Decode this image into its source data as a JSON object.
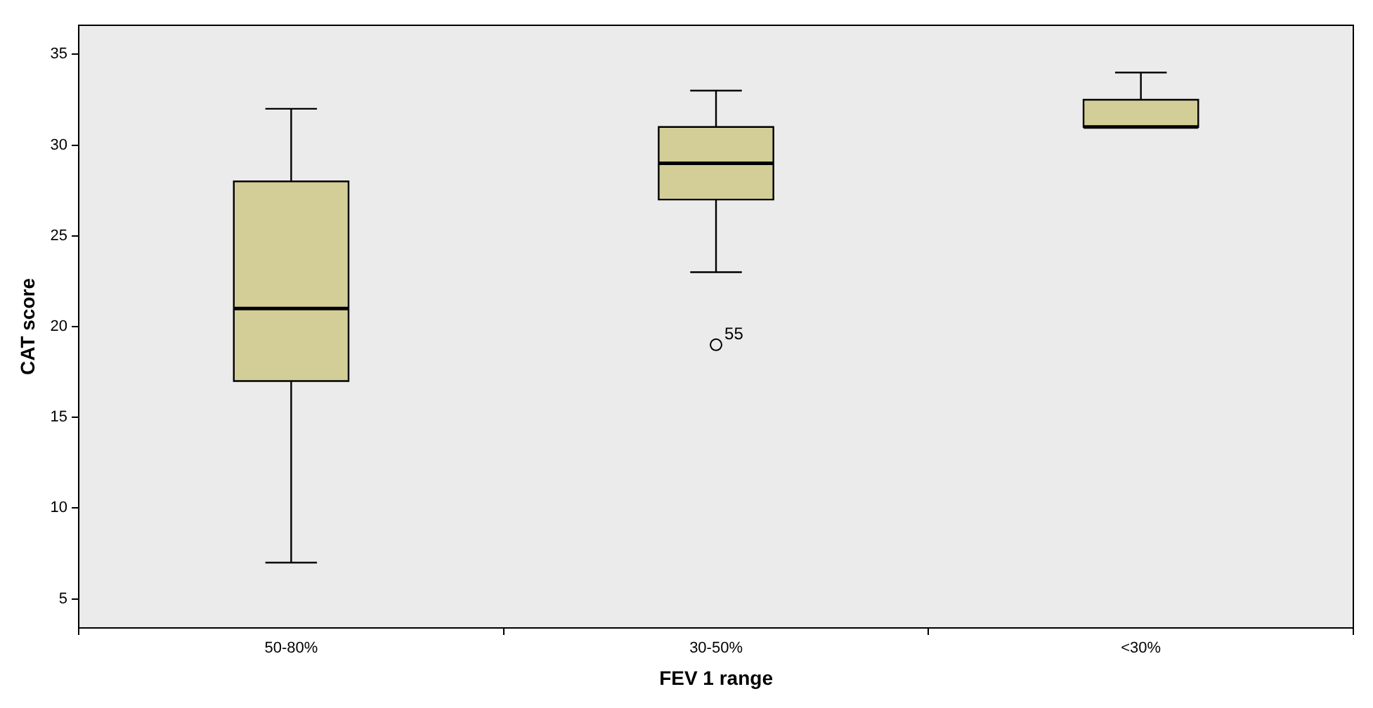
{
  "chart_data": {
    "type": "box",
    "xlabel": "FEV 1 range",
    "ylabel": "CAT score",
    "categories": [
      "50-80%",
      "30-50%",
      "<30%"
    ],
    "color": "#d3ce97",
    "marker": "circle",
    "grid": false,
    "legend": false,
    "boxes": [
      {
        "low": 7,
        "q1": 17,
        "median": 21,
        "q3": 28,
        "high": 32
      },
      {
        "low": 23,
        "q1": 27,
        "median": 29,
        "q3": 31,
        "high": 33,
        "outliers": [
          19
        ]
      },
      {
        "low": 31,
        "q1": 31,
        "median": 31,
        "q3": 32.5,
        "high": 34
      }
    ],
    "ylim": [
      3.4,
      36.6
    ],
    "yticks": [
      5,
      10,
      15,
      20,
      25,
      30,
      35
    ],
    "annotations": [
      "55"
    ]
  }
}
